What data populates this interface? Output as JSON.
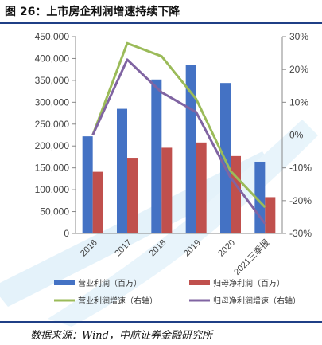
{
  "header": {
    "title": "图 26：上市房企利润增速持续下降"
  },
  "source": {
    "text": "数据来源：Wind，中航证券金融研究所"
  },
  "chart_data": {
    "type": "bar",
    "title": "",
    "categories": [
      "2016",
      "2017",
      "2018",
      "2019",
      "2020",
      "2021三季报"
    ],
    "series": [
      {
        "name": "营业利润（百万）",
        "kind": "bar",
        "axis": "left",
        "color": "#4472c4",
        "values": [
          222000,
          285000,
          352000,
          386000,
          344000,
          164000
        ]
      },
      {
        "name": "归母净利润（百万）",
        "kind": "bar",
        "axis": "left",
        "color": "#c0504d",
        "values": [
          141000,
          173000,
          196000,
          208000,
          177000,
          83000
        ]
      },
      {
        "name": "营业利润增速（右轴）",
        "kind": "line",
        "axis": "right",
        "color": "#9bbb59",
        "values": [
          0.0,
          0.28,
          0.24,
          0.11,
          -0.11,
          -0.22
        ]
      },
      {
        "name": "归母净利润增速（右轴）",
        "kind": "line",
        "axis": "right",
        "color": "#8064a2",
        "values": [
          0.0,
          0.23,
          0.13,
          0.07,
          -0.13,
          -0.27
        ]
      }
    ],
    "ylim_left": [
      0,
      450000
    ],
    "yticks_left": [
      "0",
      "50,000",
      "100,000",
      "150,000",
      "200,000",
      "250,000",
      "300,000",
      "350,000",
      "400,000",
      "450,000"
    ],
    "ylim_right": [
      -0.3,
      0.3
    ],
    "yticks_right": [
      "-30%",
      "-20%",
      "-10%",
      "0%",
      "10%",
      "20%",
      "30%"
    ],
    "grid": false,
    "legend_position": "bottom"
  }
}
